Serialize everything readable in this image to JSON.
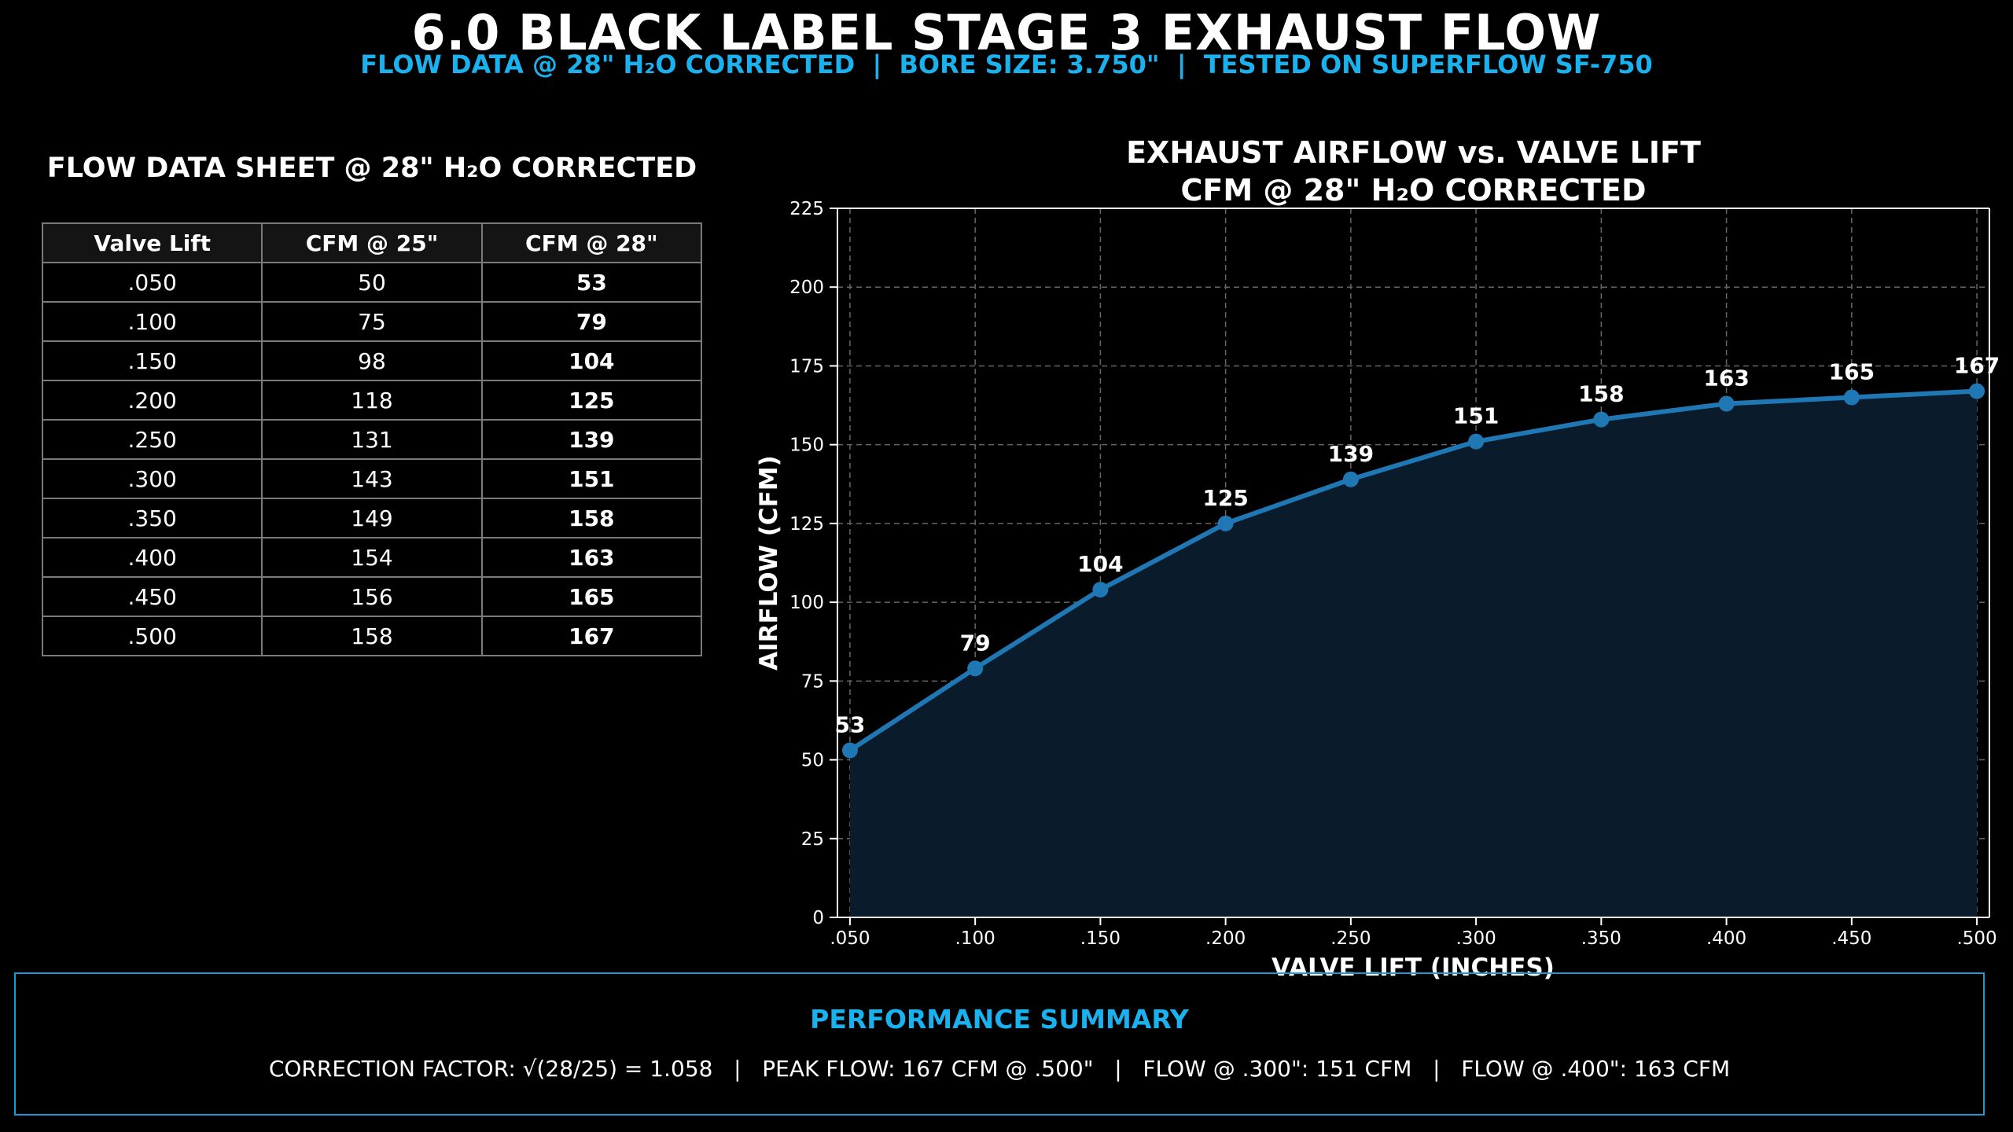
{
  "header": {
    "title": "6.0 BLACK LABEL STAGE 3 EXHAUST FLOW",
    "subtitle": "FLOW DATA @ 28\" H₂O CORRECTED  |  BORE SIZE: 3.750\"  |  TESTED ON SUPERFLOW SF-750"
  },
  "table": {
    "title": "FLOW DATA SHEET @ 28\" H₂O CORRECTED",
    "headers": [
      "Valve Lift",
      "CFM @ 25\"",
      "CFM @ 28\""
    ],
    "rows": [
      [
        ".050",
        "50",
        "53"
      ],
      [
        ".100",
        "75",
        "79"
      ],
      [
        ".150",
        "98",
        "104"
      ],
      [
        ".200",
        "118",
        "125"
      ],
      [
        ".250",
        "131",
        "139"
      ],
      [
        ".300",
        "143",
        "151"
      ],
      [
        ".350",
        "149",
        "158"
      ],
      [
        ".400",
        "154",
        "163"
      ],
      [
        ".450",
        "156",
        "165"
      ],
      [
        ".500",
        "158",
        "167"
      ]
    ]
  },
  "chart_data": {
    "type": "line",
    "title_line1": "EXHAUST AIRFLOW vs. VALVE LIFT",
    "title_line2": "CFM @ 28\" H₂O CORRECTED",
    "xlabel": "VALVE LIFT (INCHES)",
    "ylabel": "AIRFLOW (CFM)",
    "x": [
      0.05,
      0.1,
      0.15,
      0.2,
      0.25,
      0.3,
      0.35,
      0.4,
      0.45,
      0.5
    ],
    "x_tick_labels": [
      ".050",
      ".100",
      ".150",
      ".200",
      ".250",
      ".300",
      ".350",
      ".400",
      ".450",
      ".500"
    ],
    "y": [
      53,
      79,
      104,
      125,
      139,
      151,
      158,
      163,
      165,
      167
    ],
    "xlim": [
      0.045,
      0.505
    ],
    "ylim": [
      0,
      225
    ],
    "y_ticks": [
      0,
      25,
      50,
      75,
      100,
      125,
      150,
      175,
      200,
      225
    ],
    "grid": true,
    "area_fill": true,
    "line_color": "#1f77b4",
    "fill_color": "#0a1b2b"
  },
  "summary": {
    "title": "PERFORMANCE SUMMARY",
    "text": "CORRECTION FACTOR: √(28/25) = 1.058   |   PEAK FLOW: 167 CFM @ .500\"   |   FLOW @ .300\": 151 CFM   |   FLOW @ .400\": 163 CFM"
  },
  "colors": {
    "background": "#000000",
    "accent": "#1ab2ee",
    "box_border": "#1a9dd6"
  }
}
